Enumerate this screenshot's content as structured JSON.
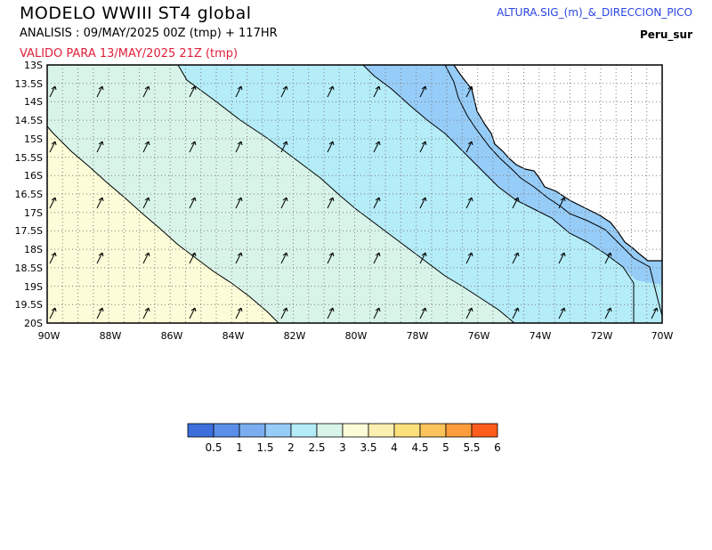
{
  "header": {
    "title": "MODELO  WWIII  ST4  global",
    "analysis": "ANALISIS : 09/MAY/2025 00Z   (tmp)  +  117HR",
    "valid": "VALIDO PARA   13/MAY/2025 21Z   (tmp)",
    "variable": "ALTURA.SIG_(m)_&_DIRECCION_PICO",
    "region": "Peru_sur"
  },
  "map": {
    "lon_range": [
      -90,
      -70
    ],
    "lat_range": [
      -20,
      -13
    ],
    "lon_ticks": [
      "90W",
      "88W",
      "86W",
      "84W",
      "82W",
      "80W",
      "78W",
      "76W",
      "74W",
      "72W",
      "70W"
    ],
    "lat_ticks": [
      "13S",
      "13.5S",
      "14S",
      "14.5S",
      "15S",
      "15.5S",
      "16S",
      "16.5S",
      "17S",
      "17.5S",
      "18S",
      "18.5S",
      "19S",
      "19.5S",
      "20S"
    ],
    "grid": "dotted",
    "arrow_direction": "toward north-east",
    "land_color": "#ffffff"
  },
  "colorbar": {
    "labels": [
      "0.5",
      "1",
      "1.5",
      "2",
      "2.5",
      "3",
      "3.5",
      "4",
      "4.5",
      "5",
      "5.5",
      "6"
    ],
    "colors": [
      "#3c6fdc",
      "#5a8ee8",
      "#7aaef0",
      "#96ccf8",
      "#b4ecf8",
      "#d8f4e8",
      "#fcfcd8",
      "#fcf0b0",
      "#fce07c",
      "#fcc45c",
      "#fc9c3c",
      "#fc5c1c"
    ]
  }
}
